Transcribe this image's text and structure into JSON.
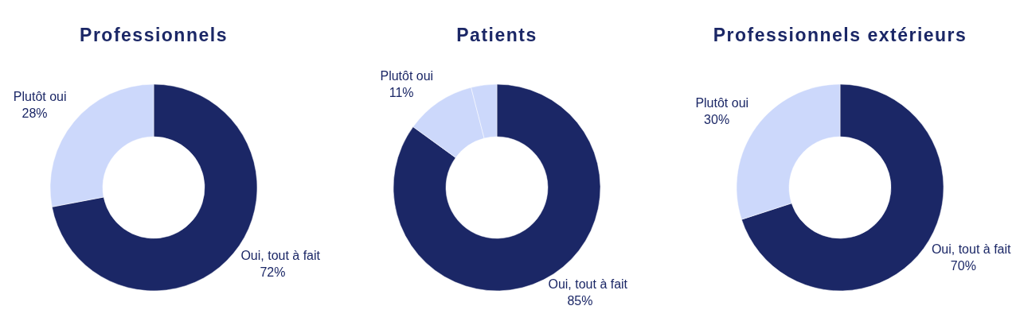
{
  "chart_data": [
    {
      "type": "donut",
      "title": "Professionnels",
      "categories": [
        "Oui, tout à fait",
        "Plutôt oui"
      ],
      "values": [
        72,
        28
      ],
      "colors": [
        "#1b2766",
        "#ccd8fb"
      ],
      "value_labels": [
        "72%",
        "28%"
      ]
    },
    {
      "type": "donut",
      "title": "Patients",
      "categories": [
        "Oui, tout à fait",
        "Plutôt oui",
        null
      ],
      "values": [
        85,
        11,
        4
      ],
      "colors": [
        "#1b2766",
        "#ccd8fb",
        "#ccd8fb"
      ],
      "value_labels": [
        "85%",
        "11%",
        null
      ]
    },
    {
      "type": "donut",
      "title": "Professionnels extérieurs",
      "categories": [
        "Oui, tout à fait",
        "Plutôt oui"
      ],
      "values": [
        70,
        30
      ],
      "colors": [
        "#1b2766",
        "#ccd8fb"
      ],
      "value_labels": [
        "70%",
        "30%"
      ]
    }
  ]
}
